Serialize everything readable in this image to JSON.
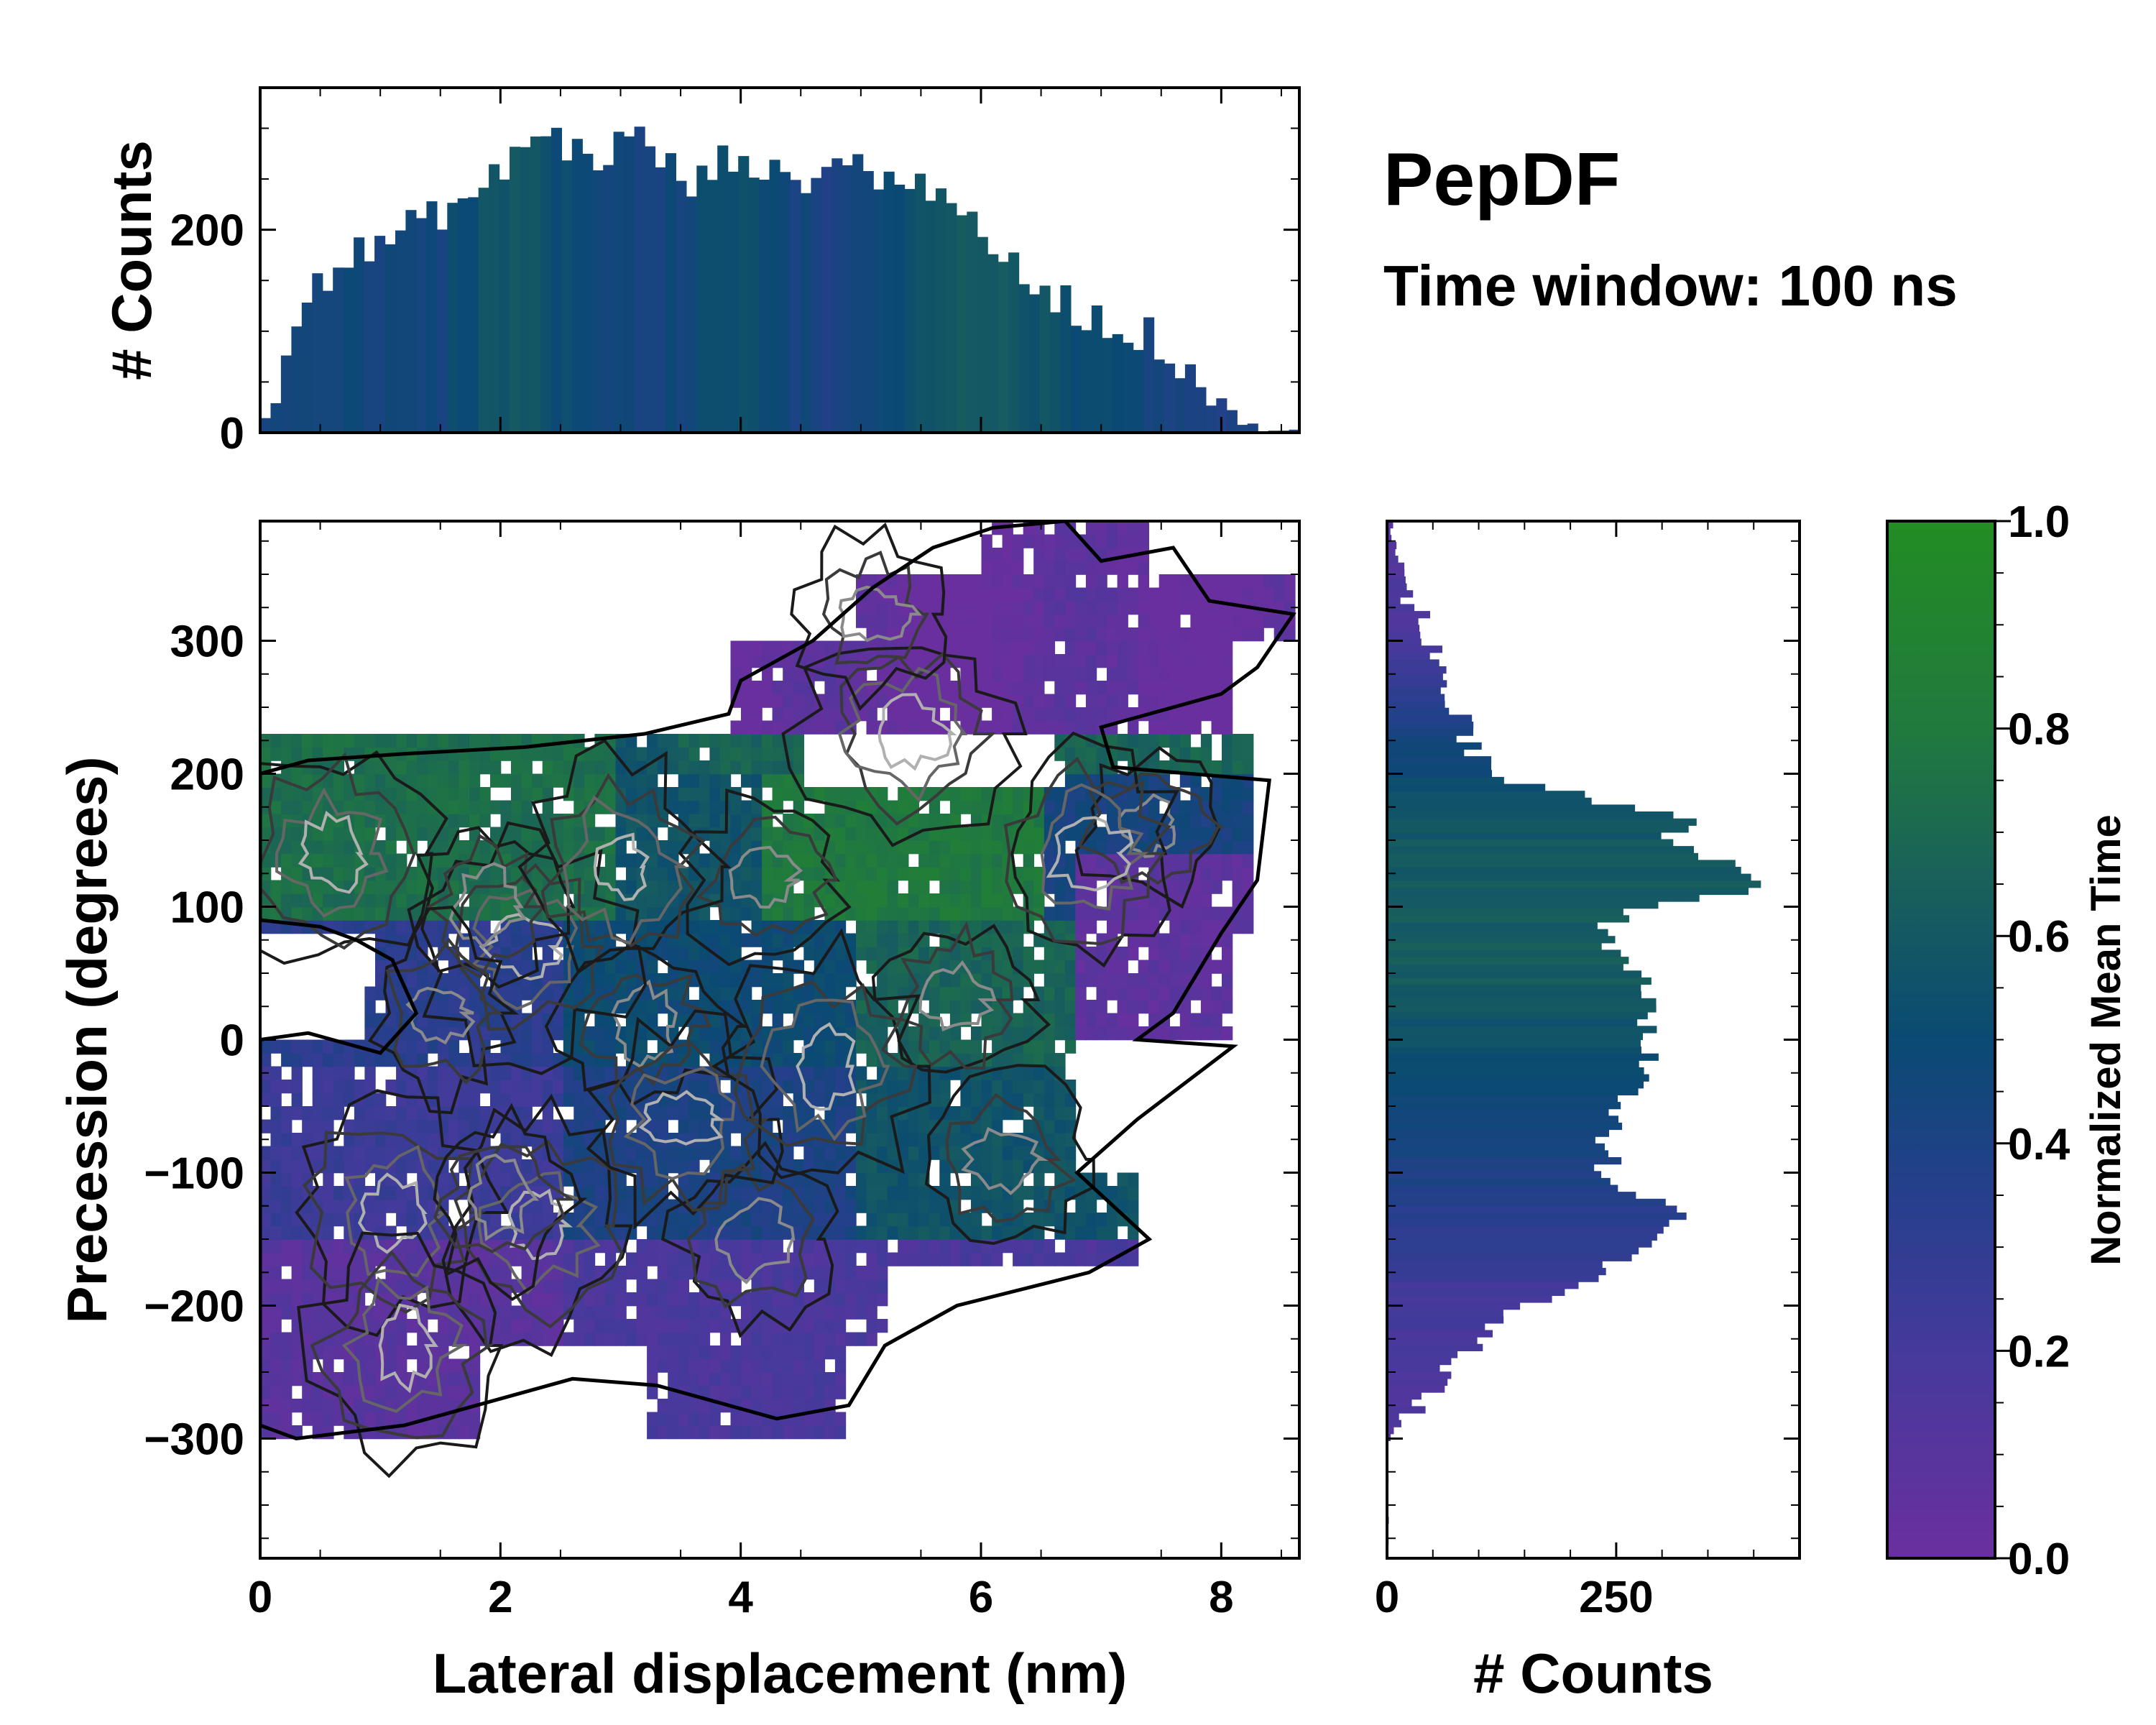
{
  "chart_data": {
    "type": "heatmap",
    "title": "PepDF",
    "subtitle": "Time window: 100 ns",
    "main": {
      "xlabel": "Lateral displacement (nm)",
      "ylabel": "Precession (degrees)",
      "xlim": [
        0,
        8.65
      ],
      "ylim": [
        -390,
        390
      ],
      "xticks": [
        0,
        2,
        4,
        6,
        8
      ],
      "yticks": [
        -300,
        -200,
        -100,
        0,
        100,
        200,
        300
      ],
      "xtick_labels": [
        "0",
        "2",
        "4",
        "6",
        "8"
      ],
      "ytick_labels": [
        "−300",
        "−200",
        "−100",
        "0",
        "100",
        "200",
        "300"
      ],
      "bin_width_x": 0.087,
      "bin_width_y": 10,
      "description": "2D histogram of lateral displacement vs precession, colored by normalized mean time, with density contour lines"
    },
    "top_histogram": {
      "ylabel": "# Counts",
      "ylim": [
        0,
        340
      ],
      "yticks": [
        0,
        200
      ],
      "ytick_labels": [
        "0",
        "200"
      ],
      "profile_x": [
        0.0,
        0.1,
        0.2,
        0.3,
        0.4,
        0.6,
        0.8,
        1.0,
        1.2,
        1.4,
        1.6,
        1.8,
        2.0,
        2.2,
        2.4,
        2.6,
        2.8,
        3.0,
        3.2,
        3.4,
        3.6,
        3.8,
        4.0,
        4.2,
        4.4,
        4.6,
        4.8,
        5.0,
        5.2,
        5.4,
        5.6,
        5.8,
        6.0,
        6.2,
        6.4,
        6.6,
        6.8,
        7.0,
        7.2,
        7.4,
        7.6,
        7.8,
        8.0,
        8.2,
        8.4,
        8.6
      ],
      "profile_counts": [
        5,
        30,
        80,
        120,
        150,
        160,
        175,
        185,
        198,
        210,
        225,
        232,
        255,
        290,
        292,
        280,
        270,
        285,
        290,
        262,
        240,
        262,
        282,
        255,
        245,
        258,
        262,
        268,
        250,
        240,
        245,
        240,
        175,
        170,
        150,
        138,
        122,
        110,
        100,
        95,
        78,
        55,
        28,
        8,
        3,
        0
      ],
      "color_profile": [
        0.45,
        0.45,
        0.46,
        0.44,
        0.44,
        0.45,
        0.5,
        0.55,
        0.58,
        0.52,
        0.48,
        0.45,
        0.42,
        0.46,
        0.5,
        0.52,
        0.48,
        0.44,
        0.42,
        0.45,
        0.5,
        0.55,
        0.6,
        0.62,
        0.58,
        0.55,
        0.52,
        0.5,
        0.46,
        0.42,
        0.4,
        0.38,
        0.38,
        0.4
      ]
    },
    "right_histogram": {
      "xlabel": "# Counts",
      "xlim": [
        0,
        450
      ],
      "xticks": [
        0,
        250
      ],
      "xtick_labels": [
        "0",
        "250"
      ],
      "profile_y": [
        -390,
        -300,
        -280,
        -260,
        -240,
        -220,
        -200,
        -180,
        -160,
        -140,
        -130,
        -120,
        -110,
        -100,
        -90,
        -80,
        -60,
        -40,
        -20,
        0,
        20,
        40,
        60,
        80,
        100,
        110,
        120,
        130,
        140,
        150,
        160,
        170,
        180,
        200,
        220,
        240,
        260,
        280,
        300,
        320,
        340,
        360,
        380
      ],
      "profile_counts": [
        0,
        0,
        30,
        55,
        75,
        110,
        150,
        215,
        270,
        315,
        335,
        300,
        250,
        230,
        255,
        240,
        250,
        265,
        290,
        270,
        295,
        285,
        265,
        230,
        280,
        380,
        405,
        390,
        340,
        300,
        335,
        310,
        230,
        110,
        95,
        80,
        70,
        55,
        45,
        35,
        20,
        15,
        5
      ],
      "color_profile_y": [
        -390,
        -300,
        -200,
        -150,
        -100,
        -50,
        0,
        50,
        100,
        140,
        180,
        220,
        260,
        300,
        390
      ],
      "color_profile": [
        0.1,
        0.14,
        0.2,
        0.3,
        0.4,
        0.45,
        0.55,
        0.62,
        0.62,
        0.6,
        0.55,
        0.45,
        0.3,
        0.18,
        0.12
      ]
    },
    "colorbar": {
      "label": "Normalized Mean Time",
      "range": [
        0.0,
        1.0
      ],
      "ticks": [
        0.0,
        0.2,
        0.4,
        0.6,
        0.8,
        1.0
      ],
      "tick_labels": [
        "0.0",
        "0.2",
        "0.4",
        "0.6",
        "0.8",
        "1.0"
      ],
      "colormap_stops": [
        {
          "value": 0.0,
          "color": "#6a2f9e"
        },
        {
          "value": 0.2,
          "color": "#453a9c"
        },
        {
          "value": 0.35,
          "color": "#263f8c"
        },
        {
          "value": 0.5,
          "color": "#0a4a73"
        },
        {
          "value": 0.65,
          "color": "#19605b"
        },
        {
          "value": 0.8,
          "color": "#207a3e"
        },
        {
          "value": 1.0,
          "color": "#238c23"
        }
      ]
    }
  }
}
